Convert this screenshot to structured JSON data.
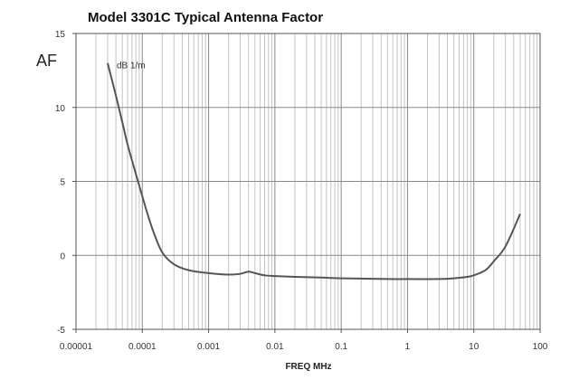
{
  "chart_data": {
    "type": "line",
    "title": "Model 3301C Typical Antenna Factor",
    "ylabel": "AF",
    "xlabel": "FREQ MHz",
    "x_scale": "log",
    "xlim": [
      1e-05,
      100
    ],
    "ylim": [
      -5,
      15
    ],
    "x_ticks": [
      1e-05,
      0.0001,
      0.001,
      0.01,
      0.1,
      1,
      10,
      100
    ],
    "x_tick_labels": [
      "0.00001",
      "0.0001",
      "0.001",
      "0.01",
      "0.1",
      "1",
      "10",
      "100"
    ],
    "y_ticks": [
      -5,
      0,
      5,
      10,
      15
    ],
    "y_tick_labels": [
      "-5",
      "0",
      "5",
      "10",
      "15"
    ],
    "grid": true,
    "series": [
      {
        "name": "dB 1/m",
        "x": [
          3e-05,
          4e-05,
          5e-05,
          6e-05,
          8e-05,
          0.0001,
          0.00012,
          0.00015,
          0.0002,
          0.0003,
          0.0005,
          0.001,
          0.002,
          0.003,
          0.004,
          0.005,
          0.007,
          0.01,
          0.02,
          0.05,
          0.1,
          0.5,
          1,
          3,
          5,
          8,
          10,
          15,
          20,
          30,
          50
        ],
        "y": [
          13.0,
          10.8,
          9.0,
          7.5,
          5.5,
          4.0,
          2.8,
          1.5,
          0.2,
          -0.6,
          -1.0,
          -1.2,
          -1.3,
          -1.25,
          -1.1,
          -1.2,
          -1.35,
          -1.4,
          -1.45,
          -1.5,
          -1.55,
          -1.6,
          -1.6,
          -1.6,
          -1.55,
          -1.45,
          -1.35,
          -1.0,
          -0.4,
          0.6,
          2.8
        ]
      }
    ],
    "annotation": "dB 1/m"
  }
}
